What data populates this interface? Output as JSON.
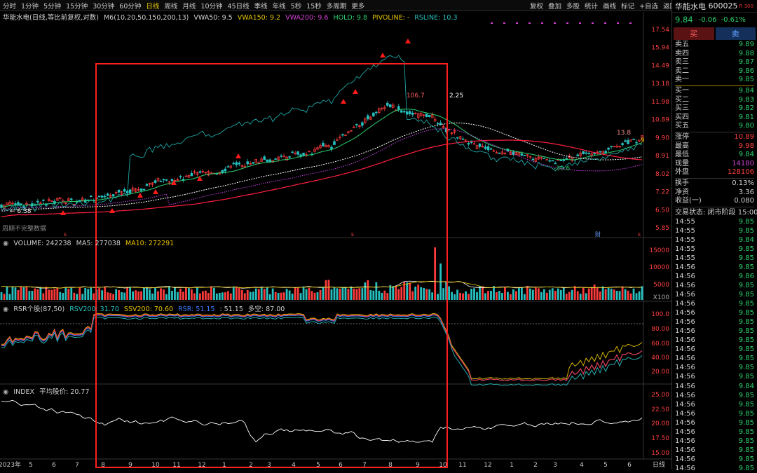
{
  "toolbar": {
    "timeframes": [
      "分时",
      "1分钟",
      "5分钟",
      "15分钟",
      "30分钟",
      "60分钟",
      "日线",
      "周线",
      "月线",
      "10分钟",
      "45日线",
      "季线",
      "年线",
      "5秒",
      "15秒",
      "多周期",
      "更多"
    ],
    "active": "日线",
    "right": [
      "复权",
      "叠加",
      "多股",
      "统计",
      "画线",
      "标记",
      "+自选",
      "返回"
    ]
  },
  "price_legend": {
    "name": "华能水电(日线,等比前复权,对数)",
    "ma": "M6(10,20,50,150,200,13)",
    "vwa50": "VWA50: 9.5",
    "vwa150": "VWA150: 9.2",
    "vwa200": "VWA200: 9.6",
    "hold": "HOLD: 9.8",
    "pivoline": "PIVOLINE: -",
    "rsline": "RSLINE: 10.3"
  },
  "price_axis": [
    "17.54",
    "15.94",
    "14.49",
    "13.18",
    "11.98",
    "10.89",
    "9.90",
    "8.91",
    "8.02",
    "7.22",
    "6.50",
    "5.85"
  ],
  "price_annotations": {
    "high": "106.7",
    "arrow": "2.25",
    "low": "-30.6",
    "left": "6.38",
    "r1": "13.8",
    "r2": "9",
    "note": "周期不完整数据"
  },
  "volume_legend": {
    "name": "VOLUME: 242238",
    "ma5": "MA5: 277038",
    "ma10": "MA10: 272291"
  },
  "volume_axis": [
    "15000",
    "10000",
    "5000",
    "X100"
  ],
  "rsr_legend": {
    "name": "RSR个股(87,50)",
    "rsv": "RSV200: 31.70",
    "ssv": "SSV200: 70.60",
    "rsr": "RSR: 51.15",
    "val": ": 51.15",
    "ks": "多空: 87.00"
  },
  "rsr_axis": [
    "100.0",
    "80.00",
    "60.00",
    "40.00",
    "20.00"
  ],
  "index_legend": {
    "name": "INDEX",
    "avg": "平均股价: 20.77"
  },
  "index_axis": [
    "25.00",
    "22.50",
    "20.00",
    "17.50",
    "15.00"
  ],
  "x_axis": [
    "2023年",
    "5",
    "6",
    "7",
    "8",
    "9",
    "10",
    "11",
    "12",
    "1",
    "2",
    "3",
    "4",
    "5",
    "6",
    "7",
    "8",
    "9",
    "10",
    "11",
    "12",
    "1",
    "2",
    "3",
    "4",
    "5",
    "6"
  ],
  "x_axis_end": "日线",
  "quote": {
    "name": "华能水电",
    "code": "600025",
    "badge": "R 300",
    "price": "9.84",
    "change": "-0.06",
    "pct": "-0.61%",
    "buy": "买",
    "sell": "卖",
    "asks": [
      [
        "卖五",
        "9.89"
      ],
      [
        "卖四",
        "9.88"
      ],
      [
        "卖三",
        "9.87"
      ],
      [
        "卖二",
        "9.86"
      ],
      [
        "卖一",
        "9.85"
      ]
    ],
    "bids": [
      [
        "买一",
        "9.84"
      ],
      [
        "买二",
        "9.83"
      ],
      [
        "买三",
        "9.82"
      ],
      [
        "买四",
        "9.81"
      ],
      [
        "买五",
        "9.80"
      ]
    ],
    "stats": [
      [
        "涨停",
        "10.89",
        "rd"
      ],
      [
        "最高",
        "9.98",
        "rd"
      ],
      [
        "最低",
        "9.84",
        "g"
      ],
      [
        "现量",
        "14180",
        "m"
      ],
      [
        "外盘",
        "128106",
        "rd"
      ]
    ],
    "stats2": [
      [
        "换手",
        "0.13%",
        "w"
      ],
      [
        "净资",
        "3.36",
        "w"
      ],
      [
        "收益(一)",
        "0.080",
        "w"
      ]
    ],
    "state": "交易状态: 闭市阶段 15:00",
    "ticks": [
      [
        "14:55",
        "9.85"
      ],
      [
        "14:55",
        "9.85"
      ],
      [
        "14:55",
        "9.84"
      ],
      [
        "14:55",
        "9.85"
      ],
      [
        "14:55",
        "9.85"
      ],
      [
        "14:56",
        "9.85"
      ],
      [
        "14:56",
        "9.86"
      ],
      [
        "14:56",
        "9.85"
      ],
      [
        "14:56",
        "9.85"
      ],
      [
        "14:56",
        "9.85"
      ],
      [
        "14:56",
        "9.85"
      ],
      [
        "14:56",
        "9.85"
      ],
      [
        "14:56",
        "9.85"
      ],
      [
        "14:56",
        "9.85"
      ],
      [
        "14:56",
        "9.85"
      ],
      [
        "14:56",
        "9.85"
      ],
      [
        "14:56",
        "9.85"
      ],
      [
        "14:56",
        "9.85"
      ],
      [
        "14:56",
        "9.84"
      ],
      [
        "14:56",
        "9.85"
      ],
      [
        "14:56",
        "9.85"
      ],
      [
        "14:56",
        "9.85"
      ],
      [
        "14:56",
        "9.85"
      ],
      [
        "14:56",
        "9.85"
      ],
      [
        "14:56",
        "9.85"
      ],
      [
        "14:56",
        "9.85"
      ],
      [
        "14:56",
        "9.85"
      ],
      [
        "14:56",
        "9.85"
      ]
    ]
  },
  "colors": {
    "up": "#ff3b3b",
    "down": "#27c0c0",
    "accent": "#e6c200",
    "box": "#ff2020"
  }
}
